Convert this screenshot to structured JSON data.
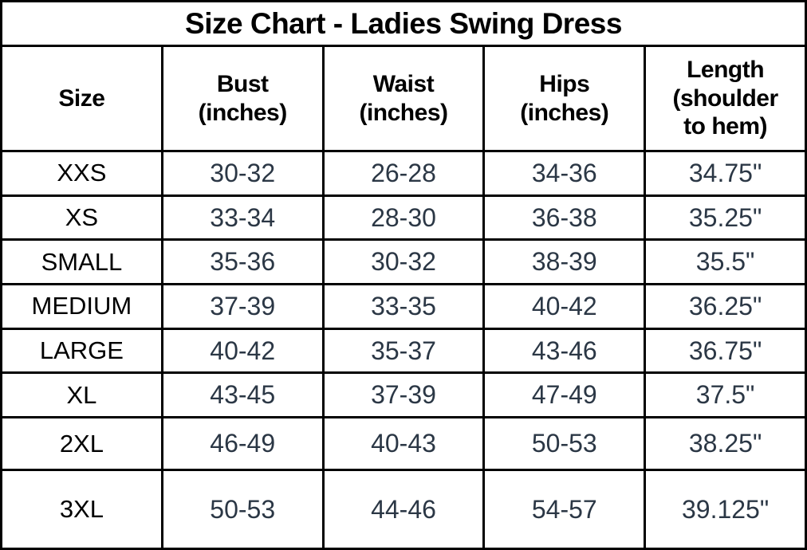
{
  "title": "Size Chart - Ladies Swing Dress",
  "colors": {
    "background": "#ffffff",
    "border": "#000000",
    "header_text": "#000000",
    "size_label_text": "#000000",
    "measurement_text": "#2b3745"
  },
  "table": {
    "display_headers": [
      "Size",
      "Bust\n(inches)",
      "Waist\n(inches)",
      "Hips\n(inches)",
      "Length\n(shoulder\nto hem)"
    ]
  },
  "chart_data": {
    "type": "table",
    "title": "Size Chart - Ladies Swing Dress",
    "columns": [
      "Size",
      "Bust (inches)",
      "Waist (inches)",
      "Hips (inches)",
      "Length (shoulder to hem)"
    ],
    "rows": [
      [
        "XXS",
        "30-32",
        "26-28",
        "34-36",
        "34.75\""
      ],
      [
        "XS",
        "33-34",
        "28-30",
        "36-38",
        "35.25\""
      ],
      [
        "SMALL",
        "35-36",
        "30-32",
        "38-39",
        "35.5\""
      ],
      [
        "MEDIUM",
        "37-39",
        "33-35",
        "40-42",
        "36.25\""
      ],
      [
        "LARGE",
        "40-42",
        "35-37",
        "43-46",
        "36.75\""
      ],
      [
        "XL",
        "43-45",
        "37-39",
        "47-49",
        "37.5\""
      ],
      [
        "2XL",
        "46-49",
        "40-43",
        "50-53",
        "38.25\""
      ],
      [
        "3XL",
        "50-53",
        "44-46",
        "54-57",
        "39.125\""
      ]
    ]
  }
}
